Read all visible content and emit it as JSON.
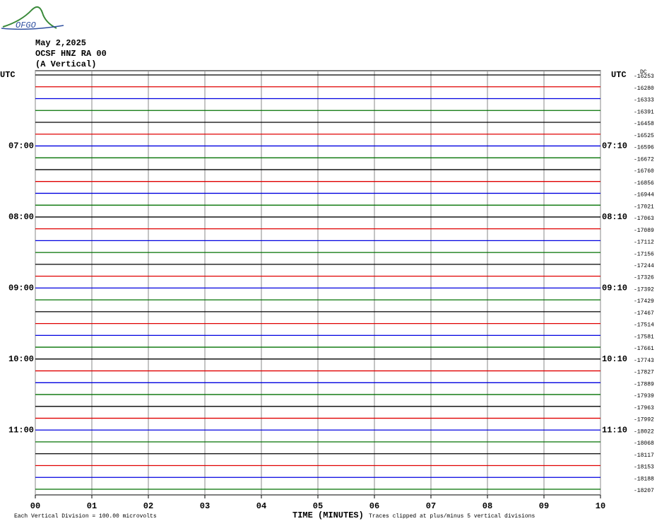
{
  "header": {
    "logo": "OFGO",
    "date": "May 2,2025",
    "station": "OCSF HNZ RA 00",
    "component": "(A Vertical)"
  },
  "utc_left": "UTC",
  "utc_right": "UTC",
  "dc_label": "DC",
  "rows": [
    {
      "offset": -16253
    },
    {
      "offset": -16280
    },
    {
      "offset": -16333
    },
    {
      "offset": -16391
    },
    {
      "offset": -16458
    },
    {
      "offset": -16525
    },
    {
      "offset": -16596,
      "left_label": "07:00",
      "right_label": "07:10"
    },
    {
      "offset": -16672
    },
    {
      "offset": -16760
    },
    {
      "offset": -16856
    },
    {
      "offset": -16944
    },
    {
      "offset": -17021
    },
    {
      "offset": -17063,
      "left_label": "08:00",
      "right_label": "08:10"
    },
    {
      "offset": -17089
    },
    {
      "offset": -17112
    },
    {
      "offset": -17156
    },
    {
      "offset": -17244
    },
    {
      "offset": -17326
    },
    {
      "offset": -17392,
      "left_label": "09:00",
      "right_label": "09:10"
    },
    {
      "offset": -17429
    },
    {
      "offset": -17467
    },
    {
      "offset": -17514
    },
    {
      "offset": -17581
    },
    {
      "offset": -17661
    },
    {
      "offset": -17743,
      "left_label": "10:00",
      "right_label": "10:10"
    },
    {
      "offset": -17827
    },
    {
      "offset": -17889
    },
    {
      "offset": -17939
    },
    {
      "offset": -17963
    },
    {
      "offset": -17992
    },
    {
      "offset": -18022,
      "left_label": "11:00",
      "right_label": "11:10"
    },
    {
      "offset": -18068
    },
    {
      "offset": -18117
    },
    {
      "offset": -18153
    },
    {
      "offset": -18188
    },
    {
      "offset": -18207
    }
  ],
  "trace_colors": [
    "#000000",
    "#e00000",
    "#0000e0",
    "#007000"
  ],
  "x_ticks": [
    "00",
    "01",
    "02",
    "03",
    "04",
    "05",
    "06",
    "07",
    "08",
    "09",
    "10"
  ],
  "footer": {
    "scale_note": "Each Vertical Division =  100.00 microvolts",
    "x_title": "TIME (MINUTES)",
    "clip_note": "Traces clipped at plus/minus 5 vertical divisions"
  }
}
